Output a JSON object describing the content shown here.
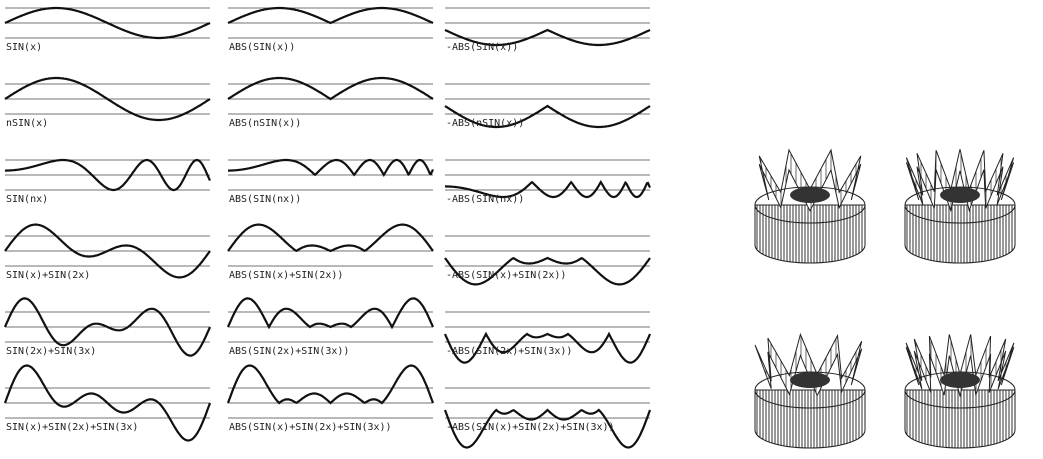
{
  "grid": [
    [
      "SIN(x)",
      "ABS(SIN(x))",
      "-ABS(SIN(x))"
    ],
    [
      "nSIN(x)",
      "ABS(nSIN(x))",
      "-ABS(nSIN(x))"
    ],
    [
      "SIN(nx)",
      "ABS(SIN(nx))",
      "-ABS(SIN(nx))"
    ],
    [
      "SIN(x)+SIN(2x)",
      "ABS(SIN(x)+SIN(2x))",
      "-ABS(SIN(x)+SIN(2x))"
    ],
    [
      "SIN(2x)+SIN(3x)",
      "ABS(SIN(2x)+SIN(3x))",
      "-ABS(SIN(2x)+SIN(3x))"
    ],
    [
      "SIN(x)+SIN(2x)+SIN(3x)",
      "ABS(SIN(x)+SIN(2x)+SIN(3x))",
      "-ABS(SIN(x)+SIN(2x)+SIN(3x))"
    ]
  ]
}
